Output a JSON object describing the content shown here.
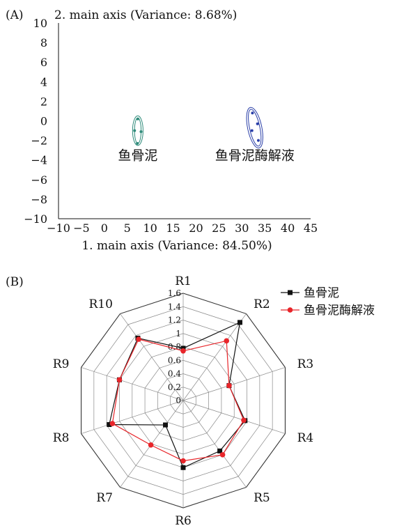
{
  "chart_data": [
    {
      "panel": "(A)",
      "type": "scatter",
      "xlabel": "1. main axis (Variance: 84.50%)",
      "ylabel": "2. main axis (Variance: 8.68%)",
      "xlim": [
        -10,
        45
      ],
      "ylim": [
        -10,
        10
      ],
      "xticks": [
        -10,
        -5,
        0,
        5,
        10,
        15,
        20,
        25,
        30,
        35,
        40,
        45
      ],
      "yticks": [
        -10,
        -8,
        -6,
        -4,
        -2,
        0,
        2,
        4,
        6,
        8,
        10
      ],
      "grid": false,
      "series": [
        {
          "name": "鱼骨泥",
          "color": "#2e8b7a",
          "ellipse": {
            "cx": 7.3,
            "cy": -1.0,
            "rx": 0.9,
            "ry": 1.4
          },
          "points": [
            [
              7.3,
              0.2
            ],
            [
              6.6,
              -1.0
            ],
            [
              8.0,
              -1.1
            ],
            [
              7.2,
              -2.3
            ]
          ]
        },
        {
          "name": "鱼骨泥酶解液",
          "color": "#2a3fa8",
          "ellipse": {
            "cx": 32.8,
            "cy": -0.7,
            "rx": 1.3,
            "ry": 2.0,
            "rotate": -12
          },
          "points": [
            [
              32.3,
              0.8
            ],
            [
              33.4,
              -0.3
            ],
            [
              32.2,
              -1.0
            ],
            [
              33.6,
              -2.0
            ]
          ]
        }
      ]
    },
    {
      "panel": "(B)",
      "type": "radar",
      "categories": [
        "R1",
        "R2",
        "R3",
        "R4",
        "R5",
        "R6",
        "R7",
        "R8",
        "R9",
        "R10"
      ],
      "rmax": 1.6,
      "rticks": [
        0,
        0.2,
        0.4,
        0.6,
        0.8,
        1.0,
        1.2,
        1.4,
        1.6
      ],
      "legend_position": "top-right",
      "series": [
        {
          "name": "鱼骨泥",
          "color": "#111111",
          "marker": "square",
          "values": [
            0.78,
            1.44,
            0.72,
            0.97,
            0.93,
            1.0,
            0.45,
            1.16,
            1.0,
            1.15
          ]
        },
        {
          "name": "鱼骨泥酶解液",
          "color": "#e8252a",
          "marker": "circle",
          "values": [
            0.74,
            1.1,
            0.72,
            0.95,
            1.0,
            0.9,
            0.82,
            1.11,
            1.0,
            1.13
          ]
        }
      ]
    }
  ]
}
